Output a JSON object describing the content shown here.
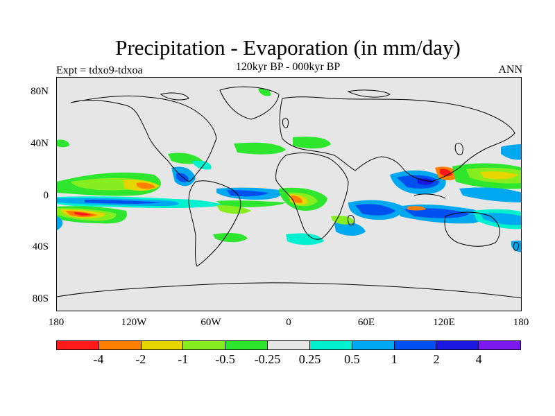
{
  "header": {
    "title": "Precipitation - Evaporation (in mm/day)",
    "subtitle": "120kyr BP - 000kyr BP",
    "left_note": "Expt = tdxo9-tdxoa",
    "right_note": "ANN"
  },
  "map": {
    "type": "filled-contour world map",
    "background_color": "#e6e6e6",
    "y_axis_labels": [
      "80N",
      "40N",
      "0",
      "40S",
      "80S"
    ],
    "x_axis_labels": [
      "180",
      "120W",
      "60W",
      "0",
      "60E",
      "120E",
      "180"
    ]
  },
  "colorbar": {
    "colors": [
      "#ff1a1a",
      "#ff8000",
      "#e6d600",
      "#86ee1e",
      "#2ee62e",
      "#e6e6e6",
      "#00f0d0",
      "#00a8f0",
      "#0050f0",
      "#1a18e0",
      "#7a18ee"
    ],
    "labels": [
      "-4",
      "-2",
      "-1",
      "-0.5",
      "-0.25",
      "0.25",
      "0.5",
      "1",
      "2",
      "4"
    ]
  }
}
